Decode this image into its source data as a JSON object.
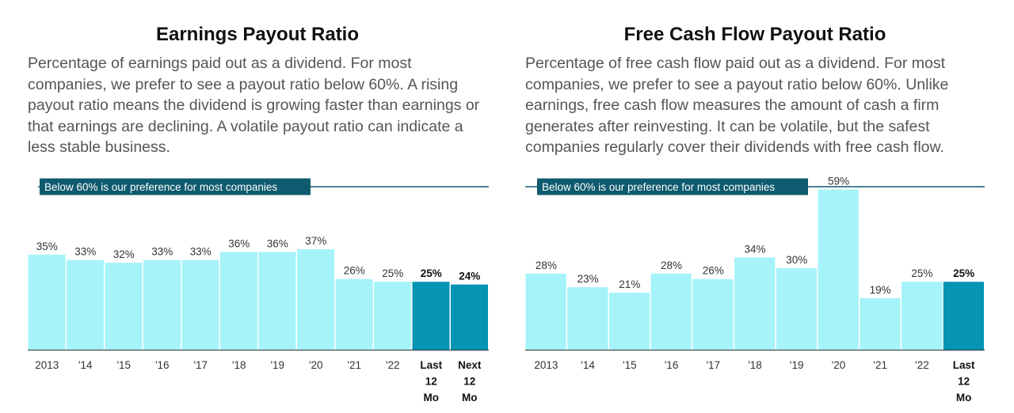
{
  "chart_data": [
    {
      "type": "bar",
      "title": "Earnings Payout Ratio",
      "description": "Percentage of earnings paid out as a dividend. For most companies, we prefer to see a payout ratio below 60%. A rising payout ratio means the dividend is growing faster than earnings or that earnings are declining. A volatile payout ratio can indicate a less stable business.",
      "categories": [
        [
          "2013"
        ],
        [
          "'14"
        ],
        [
          "'15"
        ],
        [
          "'16"
        ],
        [
          "'17"
        ],
        [
          "'18"
        ],
        [
          "'19"
        ],
        [
          "'20"
        ],
        [
          "'21"
        ],
        [
          "'22"
        ],
        [
          "Last",
          "12",
          "Mo"
        ],
        [
          "Next",
          "12",
          "Mo"
        ]
      ],
      "values": [
        35,
        33,
        32,
        33,
        33,
        36,
        36,
        37,
        26,
        25,
        25,
        24
      ],
      "value_labels": [
        "35%",
        "33%",
        "32%",
        "33%",
        "33%",
        "36%",
        "36%",
        "37%",
        "26%",
        "25%",
        "25%",
        "24%"
      ],
      "highlighted": [
        false,
        false,
        false,
        false,
        false,
        false,
        false,
        false,
        false,
        false,
        true,
        true
      ],
      "reference_line": {
        "value": 60,
        "label": "Below 60% is our preference for most companies"
      },
      "ylim": [
        0,
        60
      ],
      "xlabel": "",
      "ylabel": "",
      "grid": false,
      "colors": {
        "bar": "#a6f3fa",
        "highlight": "#0594b4",
        "reference": "#0e5a6e",
        "axis": "#333333"
      }
    },
    {
      "type": "bar",
      "title": "Free Cash Flow Payout Ratio",
      "description": "Percentage of free cash flow paid out as a dividend. For most companies, we prefer to see a payout ratio below 60%. Unlike earnings, free cash flow measures the amount of cash a firm generates after reinvesting. It can be volatile, but the safest companies regularly cover their dividends with free cash flow.",
      "categories": [
        [
          "2013"
        ],
        [
          "'14"
        ],
        [
          "'15"
        ],
        [
          "'16"
        ],
        [
          "'17"
        ],
        [
          "'18"
        ],
        [
          "'19"
        ],
        [
          "'20"
        ],
        [
          "'21"
        ],
        [
          "'22"
        ],
        [
          "Last",
          "12",
          "Mo"
        ]
      ],
      "values": [
        28,
        23,
        21,
        28,
        26,
        34,
        30,
        59,
        19,
        25,
        25
      ],
      "value_labels": [
        "28%",
        "23%",
        "21%",
        "28%",
        "26%",
        "34%",
        "30%",
        "59%",
        "19%",
        "25%",
        "25%"
      ],
      "highlighted": [
        false,
        false,
        false,
        false,
        false,
        false,
        false,
        false,
        false,
        false,
        true
      ],
      "reference_line": {
        "value": 60,
        "label": "Below 60% is our preference for most companies"
      },
      "ylim": [
        0,
        60
      ],
      "xlabel": "",
      "ylabel": "",
      "grid": false,
      "colors": {
        "bar": "#a6f3fa",
        "highlight": "#0594b4",
        "reference": "#0e5a6e",
        "axis": "#333333"
      }
    }
  ]
}
